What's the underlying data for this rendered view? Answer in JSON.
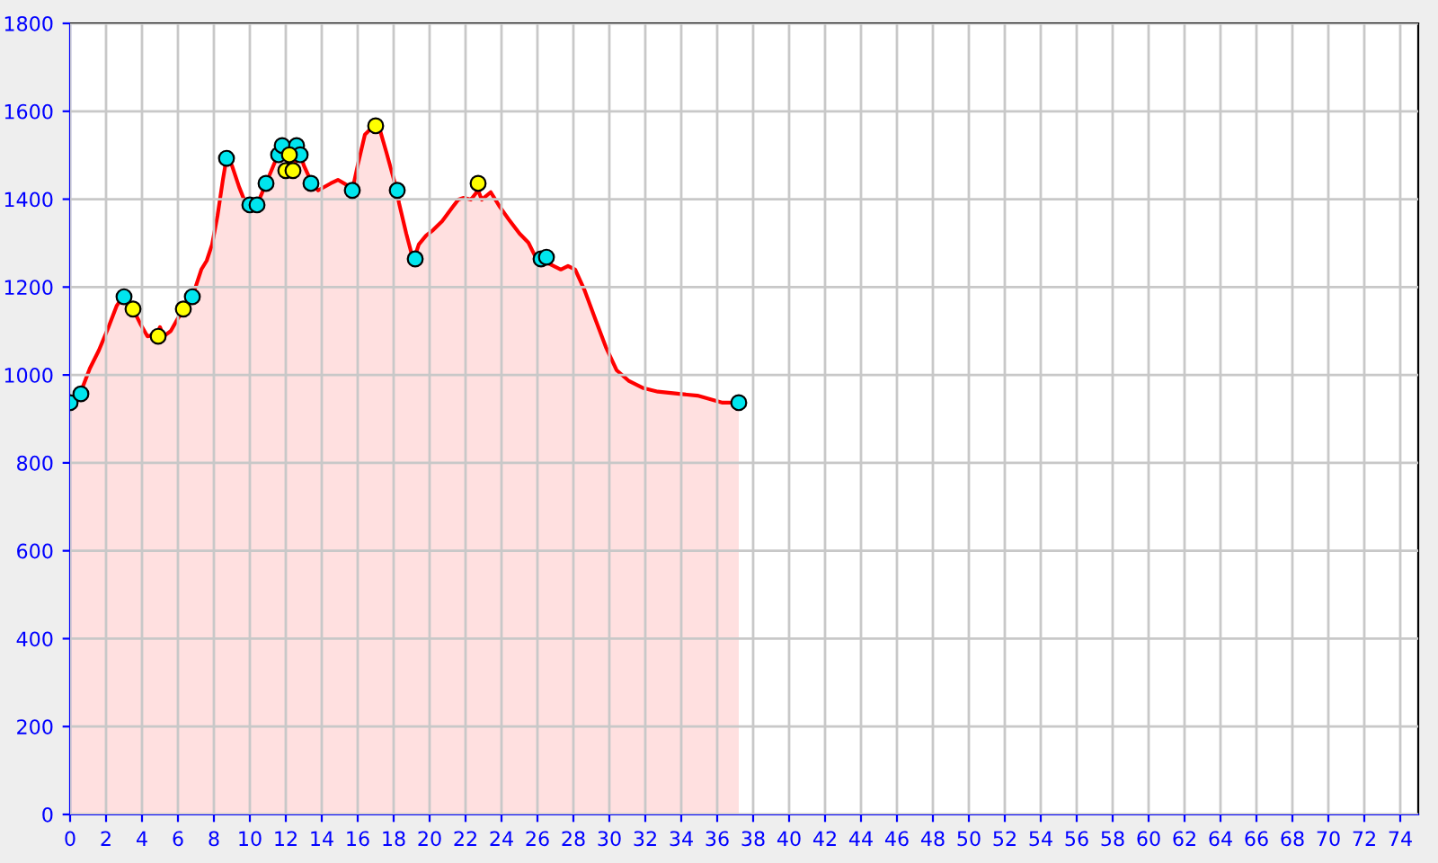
{
  "chart_data": {
    "type": "area",
    "xlim": [
      0,
      75
    ],
    "ylim": [
      0,
      1800
    ],
    "xticks": [
      0,
      2,
      4,
      6,
      8,
      10,
      12,
      14,
      16,
      18,
      20,
      22,
      24,
      26,
      28,
      30,
      32,
      34,
      36,
      38,
      40,
      42,
      44,
      46,
      48,
      50,
      52,
      54,
      56,
      58,
      60,
      62,
      64,
      66,
      68,
      70,
      72,
      74
    ],
    "yticks": [
      0,
      200,
      400,
      600,
      800,
      1000,
      1200,
      1400,
      1600,
      1800
    ],
    "grid": true,
    "series": [
      {
        "color": "#ff0000",
        "marker": "none",
        "x": [
          0,
          0.6,
          1.1,
          1.6,
          2.1,
          2.6,
          3.0,
          3.5,
          3.9,
          4.3,
          4.8,
          5.0,
          5.2,
          5.6,
          6.0,
          6.4,
          6.8,
          7.3,
          7.6,
          7.9,
          8.2,
          8.5,
          8.7,
          9.0,
          9.4,
          9.8,
          10.4,
          10.9,
          11.4,
          11.8,
          12.2,
          12.4,
          12.7,
          13.0,
          13.5,
          13.8,
          14.5,
          14.9,
          15.4,
          15.7,
          16.0,
          16.4,
          16.8,
          17.2,
          17.6,
          18.1,
          18.3,
          18.7,
          19.1,
          19.4,
          19.8,
          20.2,
          20.7,
          21.3,
          21.6,
          21.9,
          22.3,
          22.7,
          22.9,
          23.4,
          23.9,
          24.4,
          25.0,
          25.5,
          25.9,
          26.2,
          26.7,
          27.3,
          27.7,
          28.1,
          28.6,
          29.2,
          29.8,
          30.4,
          31.1,
          31.9,
          32.7,
          33.9,
          34.9,
          35.6,
          36.3,
          37.2
        ],
        "values": [
          937,
          962,
          1015,
          1056,
          1105,
          1158,
          1182,
          1150,
          1117,
          1088,
          1092,
          1109,
          1088,
          1100,
          1129,
          1150,
          1178,
          1240,
          1260,
          1297,
          1362,
          1444,
          1493,
          1477,
          1428,
          1387,
          1387,
          1436,
          1485,
          1518,
          1477,
          1457,
          1518,
          1477,
          1432,
          1420,
          1436,
          1444,
          1432,
          1420,
          1477,
          1547,
          1563,
          1563,
          1506,
          1432,
          1391,
          1322,
          1260,
          1297,
          1317,
          1330,
          1350,
          1383,
          1399,
          1403,
          1399,
          1420,
          1399,
          1416,
          1383,
          1354,
          1322,
          1301,
          1268,
          1260,
          1252,
          1240,
          1248,
          1240,
          1195,
          1129,
          1064,
          1011,
          986,
          970,
          962,
          957,
          953,
          945,
          937,
          937
        ]
      },
      {
        "type": "scatter",
        "color": "#00e5ee",
        "marker": "circle",
        "x": [
          0,
          0.6,
          3.0,
          6.8,
          8.7,
          10.0,
          10.4,
          10.9,
          11.6,
          11.8,
          12.6,
          12.8,
          13.4,
          15.7,
          18.2,
          19.2,
          26.2,
          26.5,
          37.2
        ],
        "values": [
          937,
          957,
          1178,
          1178,
          1493,
          1387,
          1387,
          1436,
          1501,
          1522,
          1522,
          1501,
          1436,
          1420,
          1420,
          1264,
          1264,
          1268,
          937
        ]
      },
      {
        "type": "scatter",
        "color": "#ffff00",
        "marker": "circle",
        "x": [
          3.5,
          4.9,
          6.3,
          12.2,
          12.0,
          12.4,
          17.0,
          22.7
        ],
        "values": [
          1150,
          1088,
          1150,
          1501,
          1465,
          1465,
          1567,
          1436
        ]
      }
    ]
  }
}
